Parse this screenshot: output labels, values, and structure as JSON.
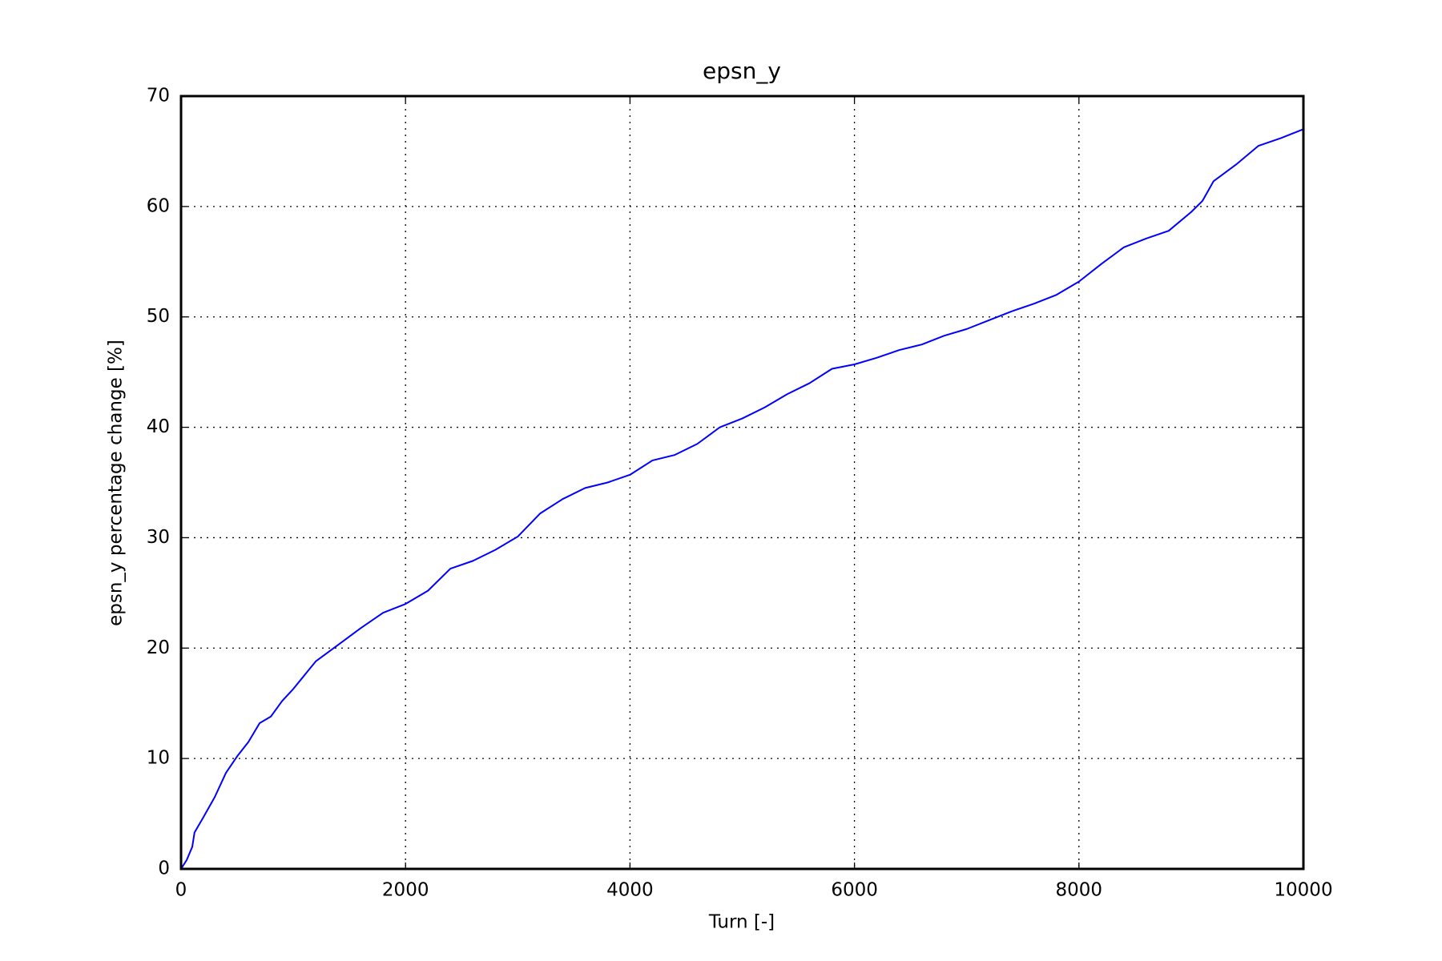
{
  "chart_data": {
    "type": "line",
    "title": "epsn_y",
    "x_label": "Turn [-]",
    "y_label": "epsn_y percentage change [%]",
    "x": [
      0,
      50,
      100,
      120,
      200,
      300,
      400,
      500,
      600,
      700,
      800,
      900,
      1000,
      1200,
      1400,
      1600,
      1800,
      2000,
      2200,
      2400,
      2600,
      2800,
      3000,
      3200,
      3400,
      3600,
      3800,
      4000,
      4200,
      4400,
      4600,
      4800,
      5000,
      5200,
      5400,
      5600,
      5800,
      6000,
      6200,
      6400,
      6600,
      6800,
      7000,
      7200,
      7400,
      7600,
      7800,
      8000,
      8200,
      8400,
      8600,
      8800,
      9000,
      9100,
      9200,
      9400,
      9600,
      9800,
      10000
    ],
    "series": [
      {
        "name": "epsn_y",
        "color": "#0000ff",
        "values": [
          0,
          0.8,
          2,
          3.3,
          4.7,
          6.5,
          8.7,
          10.2,
          11.5,
          13.2,
          13.8,
          15.2,
          16.3,
          18.8,
          20.3,
          21.8,
          23.2,
          24,
          25.2,
          27.2,
          27.9,
          28.9,
          30.1,
          32.2,
          33.5,
          34.5,
          35,
          35.7,
          37,
          37.5,
          38.5,
          40,
          40.8,
          41.8,
          43,
          44,
          45.3,
          45.7,
          46.3,
          47,
          47.5,
          48.3,
          48.9,
          49.7,
          50.5,
          51.2,
          52,
          53.2,
          54.8,
          56.3,
          57.1,
          57.8,
          59.5,
          60.5,
          62.3,
          63.8,
          65.5,
          66.2,
          67
        ]
      }
    ],
    "xlim": [
      0,
      10000
    ],
    "xticks": [
      0,
      2000,
      4000,
      6000,
      8000,
      10000
    ],
    "ylim": [
      0,
      70
    ],
    "yticks": [
      0,
      10,
      20,
      30,
      40,
      50,
      60,
      70
    ],
    "grid": true
  }
}
